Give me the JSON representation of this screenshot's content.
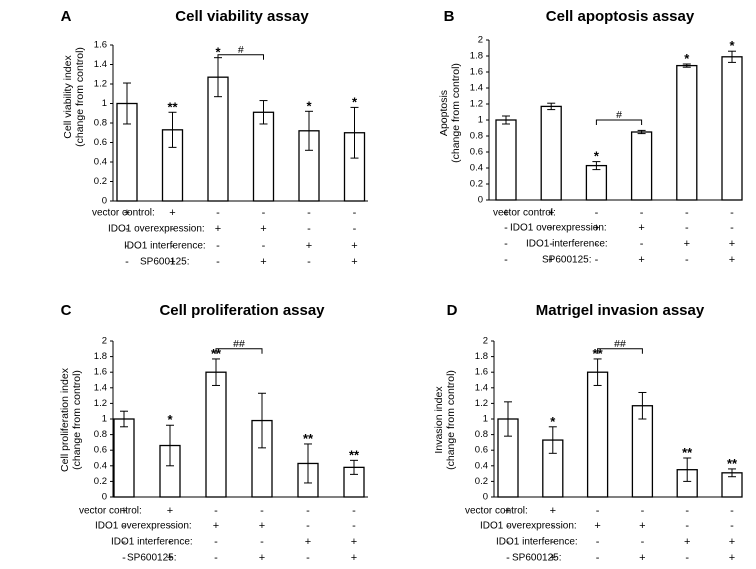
{
  "chart_data": [
    {
      "panel": "A",
      "title": "Cell viability assay",
      "type": "bar",
      "ylabel_lines": [
        "Cell viability index",
        "(change from control)"
      ],
      "ylim": [
        0,
        1.6
      ],
      "yticks": [
        "0",
        "0.2",
        "0.4",
        "0.6",
        "0.8",
        "1",
        "1.2",
        "1.4",
        "1.6"
      ],
      "values": [
        1.0,
        0.73,
        1.27,
        0.91,
        0.72,
        0.7
      ],
      "errors": [
        0.21,
        0.18,
        0.2,
        0.12,
        0.2,
        0.26
      ],
      "labels": [
        "",
        "**",
        "*",
        "",
        "*",
        "*"
      ],
      "bracket": {
        "from": 2,
        "to": 3,
        "level": 1.5,
        "label": "#"
      },
      "conditions": [
        {
          "name": "vector control:",
          "marks": [
            "+",
            "+",
            "-",
            "-",
            "-",
            "-"
          ]
        },
        {
          "name": "IDO1 overexpression:",
          "marks": [
            "-",
            "-",
            "+",
            "+",
            "-",
            "-"
          ]
        },
        {
          "name": "IDO1 interference:",
          "marks": [
            "-",
            "-",
            "-",
            "-",
            "+",
            "+"
          ]
        },
        {
          "name": "SP600125:",
          "marks": [
            "-",
            "+",
            "-",
            "+",
            "-",
            "+"
          ]
        }
      ]
    },
    {
      "panel": "B",
      "title": "Cell apoptosis assay",
      "type": "bar",
      "ylabel_lines": [
        "Apoptosis",
        "(change from control)"
      ],
      "ylim": [
        0,
        2
      ],
      "yticks": [
        "0",
        "0.2",
        "0.4",
        "0.6",
        "0.8",
        "1",
        "1.2",
        "1.4",
        "1.6",
        "1.8",
        "2"
      ],
      "values": [
        1.0,
        1.17,
        0.43,
        0.85,
        1.68,
        1.79
      ],
      "errors": [
        0.05,
        0.04,
        0.05,
        0.02,
        0.02,
        0.07
      ],
      "labels": [
        "",
        "",
        "*",
        "",
        "*",
        "*"
      ],
      "bracket": {
        "from": 2,
        "to": 3,
        "level": 1.0,
        "label": "#"
      },
      "conditions": [
        {
          "name": "vector control:",
          "marks": [
            "+",
            "+",
            "-",
            "-",
            "-",
            "-"
          ]
        },
        {
          "name": "IDO1 overexpression:",
          "marks": [
            "-",
            "-",
            "+",
            "+",
            "-",
            "-"
          ]
        },
        {
          "name": "IDO1 interference:",
          "marks": [
            "-",
            "-",
            "-",
            "-",
            "+",
            "+"
          ]
        },
        {
          "name": "SP600125:",
          "marks": [
            "-",
            "+",
            "-",
            "+",
            "-",
            "+"
          ]
        }
      ]
    },
    {
      "panel": "C",
      "title": "Cell proliferation assay",
      "type": "bar",
      "ylabel_lines": [
        "Cell proliferation index",
        "(change from control)"
      ],
      "ylim": [
        0,
        2
      ],
      "yticks": [
        "0",
        "0.2",
        "0.4",
        "0.6",
        "0.8",
        "1",
        "1.2",
        "1.4",
        "1.6",
        "1.8",
        "2"
      ],
      "values": [
        1.0,
        0.66,
        1.6,
        0.98,
        0.43,
        0.38
      ],
      "errors": [
        0.1,
        0.26,
        0.17,
        0.35,
        0.25,
        0.09
      ],
      "labels": [
        "",
        "*",
        "**",
        "",
        "**",
        "**"
      ],
      "bracket": {
        "from": 2,
        "to": 3,
        "level": 1.9,
        "label": "##"
      },
      "conditions": [
        {
          "name": "vector control:",
          "marks": [
            "+",
            "+",
            "-",
            "-",
            "-",
            "-"
          ]
        },
        {
          "name": "IDO1 overexpression:",
          "marks": [
            "-",
            "-",
            "+",
            "+",
            "-",
            "-"
          ]
        },
        {
          "name": "IDO1 interference:",
          "marks": [
            "-",
            "-",
            "-",
            "-",
            "+",
            "+"
          ]
        },
        {
          "name": "SP600125:",
          "marks": [
            "-",
            "+",
            "-",
            "+",
            "-",
            "+"
          ]
        }
      ]
    },
    {
      "panel": "D",
      "title": "Matrigel invasion assay",
      "type": "bar",
      "ylabel_lines": [
        "Invasion index",
        "(change from control)"
      ],
      "ylim": [
        0,
        2
      ],
      "yticks": [
        "0",
        "0.2",
        "0.4",
        "0.6",
        "0.8",
        "1",
        "1.2",
        "1.4",
        "1.6",
        "1.8",
        "2"
      ],
      "values": [
        1.0,
        0.73,
        1.6,
        1.17,
        0.35,
        0.31
      ],
      "errors": [
        0.22,
        0.17,
        0.17,
        0.17,
        0.15,
        0.05
      ],
      "labels": [
        "",
        "*",
        "**",
        "",
        "**",
        "**"
      ],
      "bracket": {
        "from": 2,
        "to": 3,
        "level": 1.9,
        "label": "##"
      },
      "conditions": [
        {
          "name": "vector control:",
          "marks": [
            "+",
            "+",
            "-",
            "-",
            "-",
            "-"
          ]
        },
        {
          "name": "IDO1 overexpression:",
          "marks": [
            "-",
            "-",
            "+",
            "+",
            "-",
            "-"
          ]
        },
        {
          "name": "IDO1 interference:",
          "marks": [
            "-",
            "-",
            "-",
            "-",
            "+",
            "+"
          ]
        },
        {
          "name": "SP600125:",
          "marks": [
            "-",
            "+",
            "-",
            "+",
            "-",
            "+"
          ]
        }
      ]
    }
  ]
}
